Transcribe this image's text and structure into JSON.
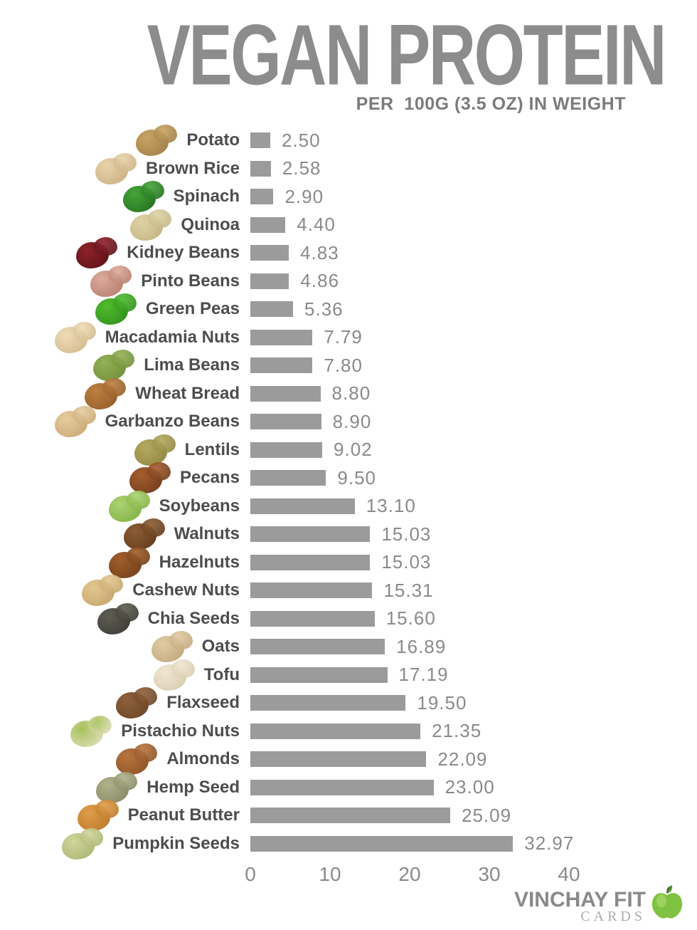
{
  "header": {
    "title": "VEGAN PROTEIN",
    "subtitle": "PER  100G (3.5 OZ) IN WEIGHT"
  },
  "chart_data": {
    "type": "bar",
    "orientation": "horizontal",
    "title": "VEGAN PROTEIN",
    "subtitle": "PER  100G (3.5 OZ) IN WEIGHT",
    "xlabel": "",
    "ylabel": "",
    "xlim": [
      0,
      40
    ],
    "xticks": [
      0,
      10,
      20,
      30,
      40
    ],
    "grid": false,
    "legend": false,
    "bar_color": "#9b9b9b",
    "categories": [
      "Potato",
      "Brown Rice",
      "Spinach",
      "Quinoa",
      "Kidney Beans",
      "Pinto Beans",
      "Green Peas",
      "Macadamia Nuts",
      "Lima Beans",
      "Wheat Bread",
      "Garbanzo Beans",
      "Lentils",
      "Pecans",
      "Soybeans",
      "Walnuts",
      "Hazelnuts",
      "Cashew Nuts",
      "Chia Seeds",
      "Oats",
      "Tofu",
      "Flaxseed",
      "Pistachio Nuts",
      "Almonds",
      "Hemp Seed",
      "Peanut Butter",
      "Pumpkin Seeds"
    ],
    "values": [
      2.5,
      2.58,
      2.9,
      4.4,
      4.83,
      4.86,
      5.36,
      7.79,
      7.8,
      8.8,
      8.9,
      9.02,
      9.5,
      13.1,
      15.03,
      15.03,
      15.31,
      15.6,
      16.89,
      17.19,
      19.5,
      21.35,
      22.09,
      23.0,
      25.09,
      32.97
    ]
  },
  "rows": [
    {
      "label": "Potato",
      "value": 2.5,
      "value_label": "2.50",
      "icon": {
        "name": "potato-icon",
        "c1": "#c9a365",
        "c2": "#9a7a43"
      }
    },
    {
      "label": "Brown Rice",
      "value": 2.58,
      "value_label": "2.58",
      "icon": {
        "name": "brown-rice-icon",
        "c1": "#e6d2ab",
        "c2": "#c8ab7d"
      }
    },
    {
      "label": "Spinach",
      "value": 2.9,
      "value_label": "2.90",
      "icon": {
        "name": "spinach-icon",
        "c1": "#46a437",
        "c2": "#20691f"
      }
    },
    {
      "label": "Quinoa",
      "value": 4.4,
      "value_label": "4.40",
      "icon": {
        "name": "quinoa-icon",
        "c1": "#ded2a5",
        "c2": "#bfb07f"
      }
    },
    {
      "label": "Kidney Beans",
      "value": 4.83,
      "value_label": "4.83",
      "icon": {
        "name": "kidney-beans-icon",
        "c1": "#8d2129",
        "c2": "#571116"
      }
    },
    {
      "label": "Pinto Beans",
      "value": 4.86,
      "value_label": "4.86",
      "icon": {
        "name": "pinto-beans-icon",
        "c1": "#dcab9c",
        "c2": "#b07665"
      }
    },
    {
      "label": "Green Peas",
      "value": 5.36,
      "value_label": "5.36",
      "icon": {
        "name": "green-peas-icon",
        "c1": "#4fbb2f",
        "c2": "#2c8919"
      }
    },
    {
      "label": "Macadamia Nuts",
      "value": 7.79,
      "value_label": "7.79",
      "icon": {
        "name": "macadamia-nuts-icon",
        "c1": "#eedcb8",
        "c2": "#d0b486"
      }
    },
    {
      "label": "Lima Beans",
      "value": 7.8,
      "value_label": "7.80",
      "icon": {
        "name": "lima-beans-icon",
        "c1": "#92b055",
        "c2": "#6c8c36"
      }
    },
    {
      "label": "Wheat Bread",
      "value": 8.8,
      "value_label": "8.80",
      "icon": {
        "name": "wheat-bread-icon",
        "c1": "#bd7f40",
        "c2": "#8c5827"
      }
    },
    {
      "label": "Garbanzo Beans",
      "value": 8.9,
      "value_label": "8.90",
      "icon": {
        "name": "garbanzo-beans-icon",
        "c1": "#e6cb9e",
        "c2": "#c5a56d"
      }
    },
    {
      "label": "Lentils",
      "value": 9.02,
      "value_label": "9.02",
      "icon": {
        "name": "lentils-icon",
        "c1": "#b5a95f",
        "c2": "#8c813e"
      }
    },
    {
      "label": "Pecans",
      "value": 9.5,
      "value_label": "9.50",
      "icon": {
        "name": "pecans-icon",
        "c1": "#a35d2e",
        "c2": "#6d3919"
      }
    },
    {
      "label": "Soybeans",
      "value": 13.1,
      "value_label": "13.10",
      "icon": {
        "name": "soybeans-icon",
        "c1": "#abd171",
        "c2": "#7cae3d"
      }
    },
    {
      "label": "Walnuts",
      "value": 15.03,
      "value_label": "15.03",
      "icon": {
        "name": "walnuts-icon",
        "c1": "#8c5c34",
        "c2": "#5c381c"
      }
    },
    {
      "label": "Hazelnuts",
      "value": 15.03,
      "value_label": "15.03",
      "icon": {
        "name": "hazelnuts-icon",
        "c1": "#a05e2b",
        "c2": "#6c3c17"
      }
    },
    {
      "label": "Cashew Nuts",
      "value": 15.31,
      "value_label": "15.31",
      "icon": {
        "name": "cashew-nuts-icon",
        "c1": "#e2c691",
        "c2": "#c1a266"
      }
    },
    {
      "label": "Chia Seeds",
      "value": 15.6,
      "value_label": "15.60",
      "icon": {
        "name": "chia-seeds-icon",
        "c1": "#5d5d54",
        "c2": "#383832"
      }
    },
    {
      "label": "Oats",
      "value": 16.89,
      "value_label": "16.89",
      "icon": {
        "name": "oats-icon",
        "c1": "#e0cba2",
        "c2": "#bda276"
      }
    },
    {
      "label": "Tofu",
      "value": 17.19,
      "value_label": "17.19",
      "icon": {
        "name": "tofu-icon",
        "c1": "#f0e7d3",
        "c2": "#d5c8ab"
      }
    },
    {
      "label": "Flaxseed",
      "value": 19.5,
      "value_label": "19.50",
      "icon": {
        "name": "flaxseed-icon",
        "c1": "#8d613b",
        "c2": "#684326"
      }
    },
    {
      "label": "Pistachio Nuts",
      "value": 21.35,
      "value_label": "21.35",
      "icon": {
        "name": "pistachio-nuts-icon",
        "c1": "#a7c25a",
        "c2": "#e9e1c9"
      }
    },
    {
      "label": "Almonds",
      "value": 22.09,
      "value_label": "22.09",
      "icon": {
        "name": "almonds-icon",
        "c1": "#b8743e",
        "c2": "#884e25"
      }
    },
    {
      "label": "Hemp Seed",
      "value": 23.0,
      "value_label": "23.00",
      "icon": {
        "name": "hemp-seed-icon",
        "c1": "#b0b28c",
        "c2": "#80825d"
      }
    },
    {
      "label": "Peanut Butter",
      "value": 25.09,
      "value_label": "25.09",
      "icon": {
        "name": "peanut-butter-icon",
        "c1": "#e09d4b",
        "c2": "#b67426"
      }
    },
    {
      "label": "Pumpkin Seeds",
      "value": 32.97,
      "value_label": "32.97",
      "icon": {
        "name": "pumpkin-seeds-icon",
        "c1": "#ced59b",
        "c2": "#a6b16c"
      }
    }
  ],
  "axis": {
    "max": 40,
    "ticks": [
      "0",
      "10",
      "20",
      "30",
      "40"
    ],
    "tick_values": [
      0,
      10,
      20,
      30,
      40
    ]
  },
  "footer": {
    "brand": "VINCHAY FIT",
    "brand_sub": "CARDS",
    "apple_color": "#7fc241",
    "leaf_color": "#4e9a2e"
  },
  "colors": {
    "title": "#8c8c8c",
    "subtitle": "#7b7b7b",
    "label": "#4d4d4d",
    "bar": "#9b9b9b",
    "value": "#8a8a8a",
    "tick": "#8a8a8a",
    "background": "#ffffff"
  }
}
